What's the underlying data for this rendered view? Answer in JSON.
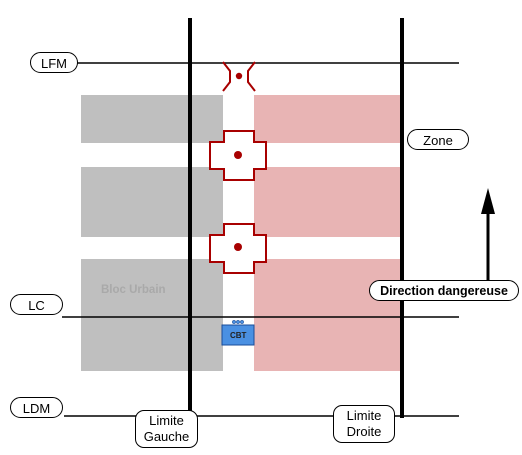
{
  "labels": {
    "lfm": "LFM",
    "lc": "LC",
    "ldm": "LDM",
    "zone": "Zone",
    "direction": "Direction dangereuse",
    "limite_gauche": [
      "Limite",
      "Gauche"
    ],
    "limite_droite": [
      "Limite",
      "Droite"
    ],
    "bloc_urbain": "Bloc Urbain",
    "cbt": "CBT"
  },
  "colors": {
    "line": "#000000",
    "gray_block": "#bfbfbf",
    "pink_zone": "#e8b4b4",
    "marker": "#a80000",
    "cbt_fill": "#4a90e2"
  },
  "icons": [
    "crossing-marker-icon",
    "cross-marker-icon",
    "cbt-unit-icon",
    "arrow-up-icon"
  ]
}
